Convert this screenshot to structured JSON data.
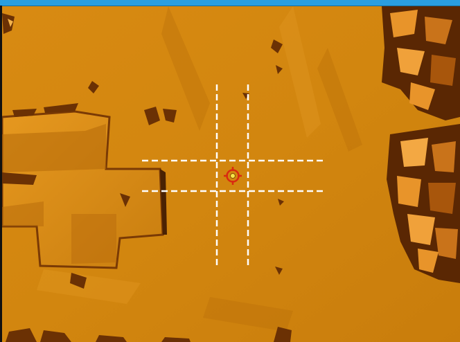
{
  "window": {
    "title_bar_color": "#2a9ee0"
  },
  "viewport": {
    "terrain_color": "#d2860f",
    "shadow_color": "#7a3a05",
    "highlight_color": "#f0a836",
    "overlay_line_color": "#ffffff"
  },
  "crosshair": {
    "icon": "target-reticle-icon",
    "ring_color": "#d92a10",
    "center_color": "#f6e64a"
  }
}
